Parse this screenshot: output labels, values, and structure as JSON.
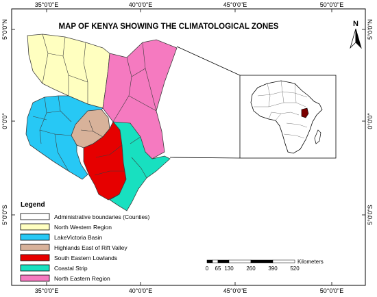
{
  "title": "MAP OF KENYA SHOWING THE CLIMATOLOGICAL ZONES",
  "grid_labels": {
    "top": [
      "35°0'0\"E",
      "40°0'0\"E",
      "45°0'0\"E",
      "50°0'0\"E"
    ],
    "bottom": [
      "35°0'0\"E",
      "40°0'0\"E",
      "45°0'0\"E",
      "50°0'0\"E"
    ],
    "left": [
      "5°0'0\"N",
      "0°0'0\"",
      "5°0'0\"S"
    ],
    "right": [
      "5°0'0\"N",
      "0°0'0\"",
      "5°0'0\"S"
    ]
  },
  "north_arrow": {
    "label": "N"
  },
  "legend": {
    "title": "Legend",
    "items": [
      {
        "label": "Administrative boundaries (Counties)",
        "color": "#ffffff"
      },
      {
        "label": "North Western Region",
        "color": "#ffffc0"
      },
      {
        "label": "LakeVictoria Basin",
        "color": "#27c8f5"
      },
      {
        "label": "Highlands East of Rift Valley",
        "color": "#d8b29a"
      },
      {
        "label": "South Eastern Lowlands",
        "color": "#e60000"
      },
      {
        "label": "Coastal Strip",
        "color": "#18e0c0"
      },
      {
        "label": "North Eastern Region",
        "color": "#f57ac0"
      }
    ]
  },
  "scale_bar": {
    "unit": "Kilometers",
    "ticks": [
      "0",
      "65",
      "130",
      "260",
      "390",
      "520"
    ]
  },
  "colors": {
    "north_western": "#ffffc0",
    "lake_victoria": "#27c8f5",
    "highlands": "#d8b29a",
    "south_eastern": "#e60000",
    "coastal": "#18e0c0",
    "north_eastern": "#f57ac0",
    "highlight": "#7a0000"
  }
}
